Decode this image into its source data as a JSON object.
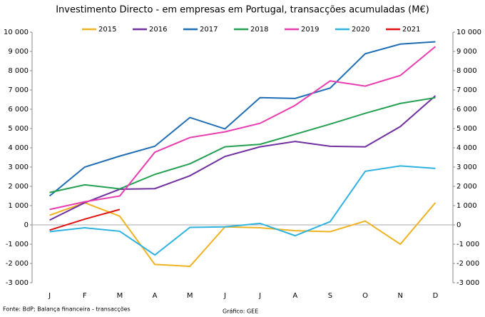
{
  "chart_data": {
    "type": "line",
    "title": "Investimento Directo - em empresas em Portugal, transacções acumuladas (M€)",
    "categories": [
      "J",
      "F",
      "M",
      "A",
      "M",
      "J",
      "J",
      "A",
      "S",
      "O",
      "N",
      "D"
    ],
    "series": [
      {
        "name": "2015",
        "color": "#f0b323",
        "values": [
          500,
          1150,
          450,
          -2050,
          -2150,
          -100,
          -150,
          -300,
          -350,
          200,
          -1000,
          1150
        ]
      },
      {
        "name": "2016",
        "color": "#7030a0",
        "values": [
          250,
          1150,
          1850,
          1880,
          2550,
          3550,
          4050,
          4330,
          4080,
          4050,
          5100,
          6700
        ]
      },
      {
        "name": "2017",
        "color": "#1f6eb5",
        "values": [
          1500,
          3000,
          3570,
          4080,
          5570,
          4980,
          6600,
          6560,
          7100,
          8880,
          9380,
          9500
        ]
      },
      {
        "name": "2018",
        "color": "#22a050",
        "values": [
          1680,
          2080,
          1870,
          2620,
          3170,
          4050,
          4180,
          4700,
          5230,
          5790,
          6300,
          6600
        ]
      },
      {
        "name": "2019",
        "color": "#e83cb0",
        "values": [
          800,
          1200,
          1500,
          3770,
          4530,
          4830,
          5270,
          6200,
          7470,
          7200,
          7750,
          9250
        ]
      },
      {
        "name": "2020",
        "color": "#2eb3e0",
        "values": [
          -350,
          -150,
          -330,
          -1560,
          -130,
          -100,
          80,
          -560,
          170,
          2780,
          3060,
          2930
        ]
      },
      {
        "name": "2021",
        "color": "#e01010",
        "values": [
          -270,
          300,
          800,
          null,
          null,
          null,
          null,
          null,
          null,
          null,
          null,
          null
        ]
      }
    ],
    "ylim": [
      -3000,
      10000
    ],
    "yticks": [
      {
        "value": 10000,
        "label": "10 000"
      },
      {
        "value": 9000,
        "label": "9 000"
      },
      {
        "value": 8000,
        "label": "8 000"
      },
      {
        "value": 7000,
        "label": "7 000"
      },
      {
        "value": 6000,
        "label": "6 000"
      },
      {
        "value": 5000,
        "label": "5 000"
      },
      {
        "value": 4000,
        "label": "4 000"
      },
      {
        "value": 3000,
        "label": "3 000"
      },
      {
        "value": 2000,
        "label": "2 000"
      },
      {
        "value": 1000,
        "label": "1 000"
      },
      0,
      {
        "value": -1000,
        "label": "-1 000"
      },
      {
        "value": -2000,
        "label": "-2 000"
      },
      {
        "value": -3000,
        "label": "-3 000"
      }
    ],
    "y2lim": [
      -3000,
      10000
    ],
    "y2ticks": [
      {
        "value": 10000,
        "label": "10 000"
      },
      {
        "value": 9000,
        "label": "9 000"
      },
      {
        "value": 8000,
        "label": "8 000"
      },
      {
        "value": 7000,
        "label": "7 000"
      },
      {
        "value": 6000,
        "label": "6 000"
      },
      {
        "value": 5000,
        "label": "5 000"
      },
      {
        "value": 4000,
        "label": "4 000"
      },
      {
        "value": 3000,
        "label": "3 000"
      },
      {
        "value": 2000,
        "label": "2 000"
      },
      {
        "value": 1000,
        "label": "1 000"
      },
      0,
      {
        "value": -1000,
        "label": "-1 000"
      },
      {
        "value": -2000,
        "label": "-2 000"
      },
      {
        "value": -3000,
        "label": "-3 000"
      }
    ],
    "legend": "top",
    "grid": false,
    "source": "Fonte: BdP; Balança financeira - transacções",
    "credit": "Gráfico: GEE"
  }
}
